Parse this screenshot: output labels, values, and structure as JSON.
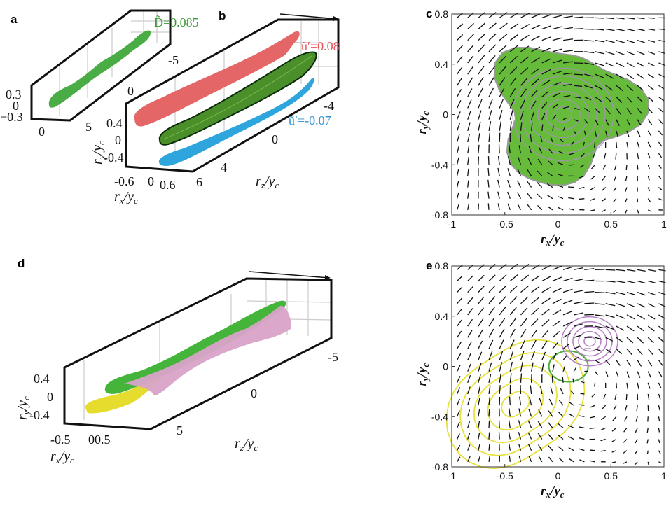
{
  "panels": {
    "a": {
      "label": "a",
      "annotation": "D̃=0.085",
      "annotation_color": "#3a9a3a",
      "ry_ticks": [
        "0.3",
        "0",
        "−0.3"
      ],
      "rz_ticks": [
        "-5",
        "0",
        "5"
      ],
      "rx_ticks": [
        "0"
      ]
    },
    "b": {
      "label": "b",
      "annotation_pos": "ũ′=0.08",
      "annotation_pos_color": "#e8555a",
      "annotation_neg": "ũ′=-0.07",
      "annotation_neg_color": "#2b8fd0",
      "ry_ticks": [
        "0.4",
        "0",
        "-0.4"
      ],
      "rz_ticks": [
        "-4",
        "0",
        "4",
        "6"
      ],
      "rx_ticks": [
        "-0.6",
        "0",
        "0.6"
      ],
      "xlabel": {
        "main": "r",
        "sub": "x",
        "den": "y",
        "den_sub": "c"
      },
      "ylabel": {
        "main": "r",
        "sub": "y",
        "den": "y",
        "den_sub": "c"
      },
      "zlabel": {
        "main": "r",
        "sub": "z",
        "den": "y",
        "den_sub": "c"
      }
    },
    "d": {
      "label": "d",
      "ry_ticks": [
        "0.4",
        "0",
        "-0.4"
      ],
      "rz_ticks": [
        "-5",
        "0",
        "5"
      ],
      "rx_ticks": [
        "-0.5",
        "00.5"
      ],
      "xlabel": {
        "main": "r",
        "sub": "x",
        "den": "y",
        "den_sub": "c"
      },
      "ylabel": {
        "main": "r",
        "sub": "y",
        "den": "y",
        "den_sub": "c"
      },
      "zlabel": {
        "main": "r",
        "sub": "z",
        "den": "y",
        "den_sub": "c"
      }
    }
  },
  "colors": {
    "green": "#4db848",
    "red": "#e35e5e",
    "blue": "#2ea6dd",
    "yellow": "#e8e23a",
    "pink": "#d9a3c8",
    "purple": "#b57fc4"
  },
  "chart_data": [
    {
      "panel": "c",
      "label": "c",
      "type": "quiver",
      "xlim": [
        -1,
        1
      ],
      "ylim": [
        -0.8,
        0.8
      ],
      "xticks": [
        "-1",
        "-0.5",
        "0",
        "0.5",
        "1"
      ],
      "yticks": [
        "0.8",
        "0.4",
        "0",
        "-0.4",
        "-0.8"
      ],
      "xlabel": {
        "main": "r",
        "sub": "x",
        "den": "y",
        "den_sub": "c"
      },
      "ylabel": {
        "main": "r",
        "sub": "y",
        "den": "y",
        "den_sub": "c"
      },
      "contours": [
        {
          "color": "#66bb3a",
          "filled": true,
          "center": [
            0,
            0
          ]
        },
        {
          "color": "#a98fc0",
          "filled": false,
          "center": [
            0,
            0
          ]
        }
      ]
    },
    {
      "panel": "e",
      "label": "e",
      "type": "quiver",
      "xlim": [
        -1,
        1
      ],
      "ylim": [
        -0.8,
        0.8
      ],
      "xticks": [
        "-1",
        "-0.5",
        "0",
        "0.5",
        "1"
      ],
      "yticks": [
        "0.8",
        "0.4",
        "0",
        "-0.4",
        "-0.8"
      ],
      "xlabel": {
        "main": "r",
        "sub": "x",
        "den": "y",
        "den_sub": "c"
      },
      "ylabel": {
        "main": "r",
        "sub": "y",
        "den": "y",
        "den_sub": "c"
      },
      "contours": [
        {
          "color": "#e8e23a",
          "center": [
            -0.4,
            -0.3
          ]
        },
        {
          "color": "#4caf3a",
          "center": [
            0.1,
            0.0
          ]
        },
        {
          "color": "#b57fc4",
          "center": [
            0.3,
            0.2
          ]
        }
      ]
    }
  ]
}
